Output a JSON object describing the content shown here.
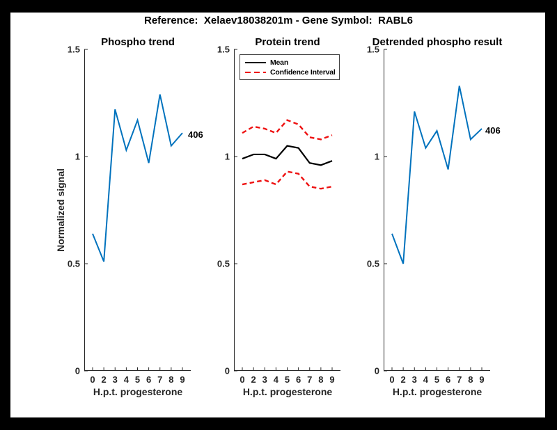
{
  "figure": {
    "title": "Reference:  Xelaev18038201m - Gene Symbol:  RABL6"
  },
  "colors": {
    "blue": "#0072BD",
    "red": "#ee1111",
    "black": "#000000",
    "axis": "#262626"
  },
  "chart_data": [
    {
      "type": "line",
      "title": "Phospho trend",
      "xlabel": "H.p.t. progesterone",
      "ylabel": "Normalized signal",
      "x_tick_labels": [
        "0",
        "2",
        "3",
        "4",
        "5",
        "6",
        "7",
        "8",
        "9"
      ],
      "y_ticks": [
        0,
        0.5,
        1,
        1.5
      ],
      "y_tick_labels": [
        "0",
        "0.5",
        "1",
        "1.5"
      ],
      "ylim": [
        0,
        1.5
      ],
      "grid": false,
      "end_label": "406",
      "series": [
        {
          "name": "406",
          "color": "#0072BD",
          "style": "solid",
          "values": [
            0.64,
            0.51,
            1.22,
            1.03,
            1.17,
            0.97,
            1.29,
            1.05,
            1.11
          ]
        }
      ]
    },
    {
      "type": "line",
      "title": "Protein trend",
      "xlabel": "H.p.t. progesterone",
      "ylabel": "",
      "x_tick_labels": [
        "0",
        "2",
        "3",
        "4",
        "5",
        "6",
        "7",
        "8",
        "9"
      ],
      "y_ticks": [
        0,
        0.5,
        1,
        1.5
      ],
      "y_tick_labels": [
        "0",
        "0.5",
        "1",
        "1.5"
      ],
      "ylim": [
        0,
        1.5
      ],
      "grid": false,
      "legend": {
        "position": "northwest",
        "entries": [
          {
            "label": "Mean",
            "color": "#000000",
            "style": "solid"
          },
          {
            "label": "Confidence Interval",
            "color": "#ee1111",
            "style": "dashed"
          }
        ]
      },
      "series": [
        {
          "name": "Mean",
          "color": "#000000",
          "style": "solid",
          "values": [
            0.99,
            1.01,
            1.01,
            0.99,
            1.05,
            1.04,
            0.97,
            0.96,
            0.98
          ]
        },
        {
          "name": "Confidence Interval upper",
          "color": "#ee1111",
          "style": "dashed",
          "values": [
            1.11,
            1.14,
            1.13,
            1.11,
            1.17,
            1.15,
            1.09,
            1.08,
            1.1
          ]
        },
        {
          "name": "Confidence Interval lower",
          "color": "#ee1111",
          "style": "dashed",
          "values": [
            0.87,
            0.88,
            0.89,
            0.87,
            0.93,
            0.92,
            0.86,
            0.85,
            0.86
          ]
        }
      ]
    },
    {
      "type": "line",
      "title": "Detrended phospho result",
      "xlabel": "H.p.t. progesterone",
      "ylabel": "",
      "x_tick_labels": [
        "0",
        "2",
        "3",
        "4",
        "5",
        "6",
        "7",
        "8",
        "9"
      ],
      "y_ticks": [
        0,
        0.5,
        1,
        1.5
      ],
      "y_tick_labels": [
        "0",
        "0.5",
        "1",
        "1.5"
      ],
      "ylim": [
        0,
        1.5
      ],
      "grid": false,
      "end_label": "406",
      "series": [
        {
          "name": "406",
          "color": "#0072BD",
          "style": "solid",
          "values": [
            0.64,
            0.5,
            1.21,
            1.04,
            1.12,
            0.94,
            1.33,
            1.08,
            1.13
          ]
        }
      ]
    }
  ]
}
